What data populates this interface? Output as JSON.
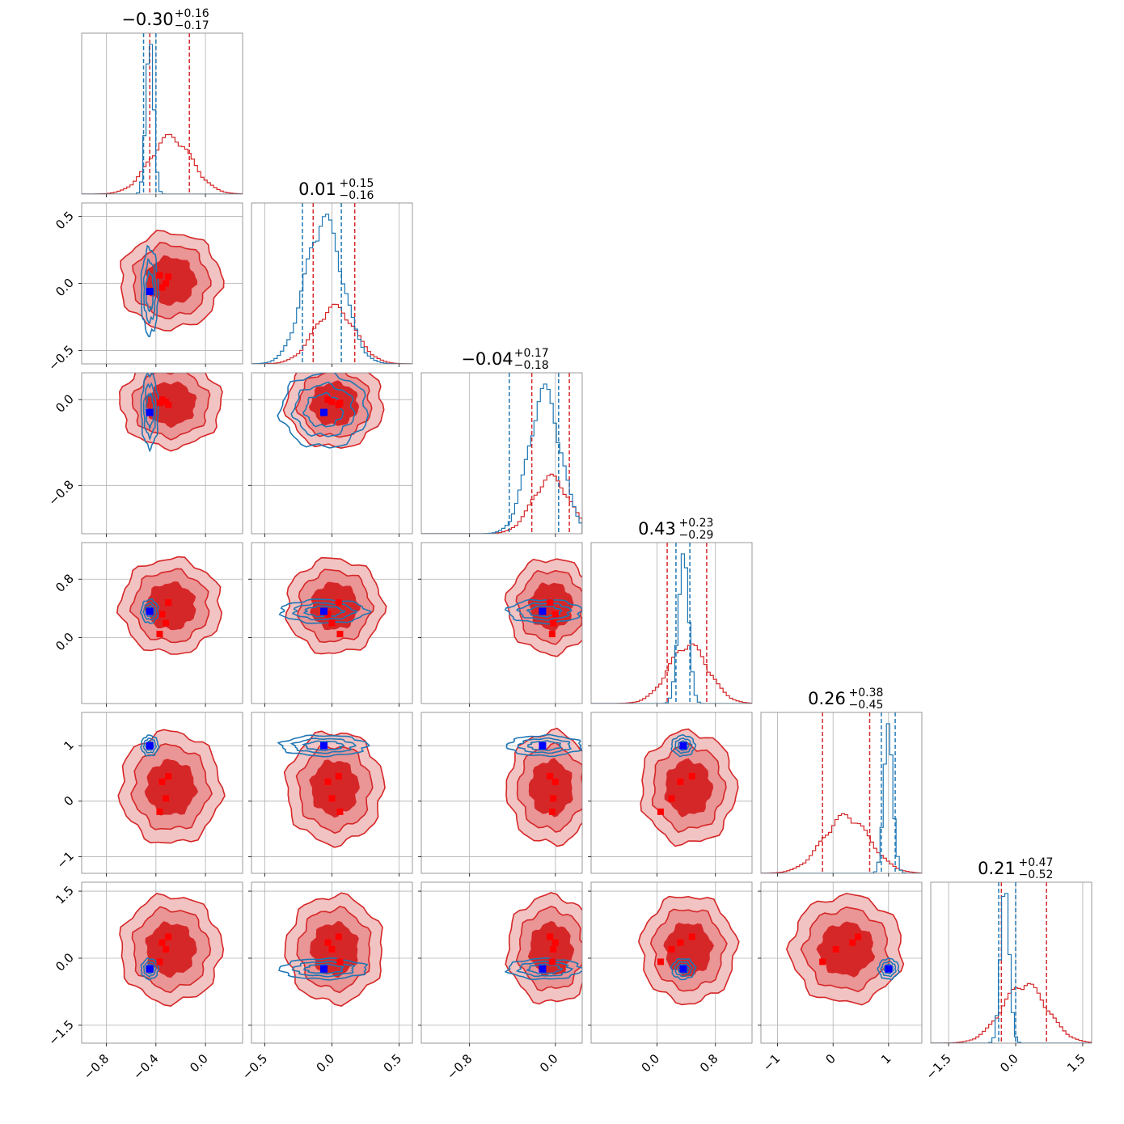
{
  "colors": {
    "red": "#d62728",
    "blue": "#1f77b4",
    "red_fill_light": "#f2c3c3",
    "red_fill_mid": "#ea9596",
    "marker_red": "#ff0000",
    "marker_blue": "#0000ff",
    "grid": "#b0b0b0",
    "spine": "#808080"
  },
  "chart_data": {
    "type": "corner",
    "grid": true,
    "n_params": 6,
    "axes_ranges": [
      [
        -1.0,
        0.3
      ],
      [
        -0.6,
        0.6
      ],
      [
        -1.25,
        0.25
      ],
      [
        -0.9,
        1.3
      ],
      [
        -1.3,
        1.6
      ],
      [
        -1.9,
        1.7
      ]
    ],
    "ticks": [
      {
        "values": [
          -0.8,
          -0.4,
          0.0
        ],
        "labels": [
          "−0.8",
          "−0.4",
          "0.0"
        ]
      },
      {
        "values": [
          -0.5,
          0.0,
          0.5
        ],
        "labels": [
          "−0.5",
          "0.0",
          "0.5"
        ]
      },
      {
        "values": [
          -0.8,
          0.0
        ],
        "labels": [
          "−0.8",
          "0.0"
        ]
      },
      {
        "values": [
          0.0,
          0.8
        ],
        "labels": [
          "0.0",
          "0.8"
        ]
      },
      {
        "values": [
          -1,
          0,
          1
        ],
        "labels": [
          "−1",
          "0",
          "1"
        ]
      },
      {
        "values": [
          -1.5,
          0.0,
          1.5
        ],
        "labels": [
          "−1.5",
          "0.0",
          "1.5"
        ]
      }
    ],
    "titles": [
      {
        "median": "−0.30",
        "plus": "+0.16",
        "minus": "−0.17"
      },
      {
        "median": "0.01",
        "plus": "+0.15",
        "minus": "−0.16"
      },
      {
        "median": "−0.04",
        "plus": "+0.17",
        "minus": "−0.18"
      },
      {
        "median": "0.43",
        "plus": "+0.23",
        "minus": "−0.29"
      },
      {
        "median": "0.26",
        "plus": "+0.38",
        "minus": "−0.45"
      },
      {
        "median": "0.21",
        "plus": "+0.47",
        "minus": "−0.52"
      }
    ],
    "series": [
      {
        "color": "red",
        "means": [
          -0.28,
          0.02,
          -0.04,
          0.43,
          0.24,
          0.2
        ],
        "stds": [
          0.17,
          0.15,
          0.17,
          0.27,
          0.42,
          0.5
        ],
        "quantile_lines": [
          [
            -0.45,
            -0.13
          ],
          [
            -0.14,
            0.17
          ],
          [
            -0.22,
            0.13
          ],
          [
            0.14,
            0.68
          ],
          [
            -0.19,
            0.66
          ],
          [
            -0.32,
            0.69
          ]
        ]
      },
      {
        "color": "blue",
        "means": [
          -0.45,
          -0.06,
          -0.1,
          0.36,
          1.0,
          -0.24
        ],
        "stds": [
          0.03,
          0.14,
          0.15,
          0.07,
          0.08,
          0.1
        ],
        "quantile_lines": [
          [
            -0.5,
            -0.4
          ],
          [
            -0.22,
            0.07
          ],
          [
            -0.43,
            0.03
          ],
          [
            0.26,
            0.45
          ],
          [
            0.87,
            1.12
          ],
          [
            -0.38,
            0.0
          ]
        ]
      }
    ],
    "markers_blue": [
      -0.45,
      -0.06,
      -0.12,
      0.36,
      1.0,
      -0.24
    ],
    "markers_red": [
      [
        -0.3,
        0.05,
        -0.05,
        0.48,
        0.45,
        0.48
      ],
      [
        -0.35,
        -0.03,
        0.0,
        0.32,
        0.35,
        0.35
      ],
      [
        -0.32,
        0.0,
        -0.02,
        0.2,
        0.05,
        0.2
      ],
      [
        -0.37,
        0.06,
        -0.03,
        0.05,
        -0.19,
        -0.08
      ]
    ]
  }
}
